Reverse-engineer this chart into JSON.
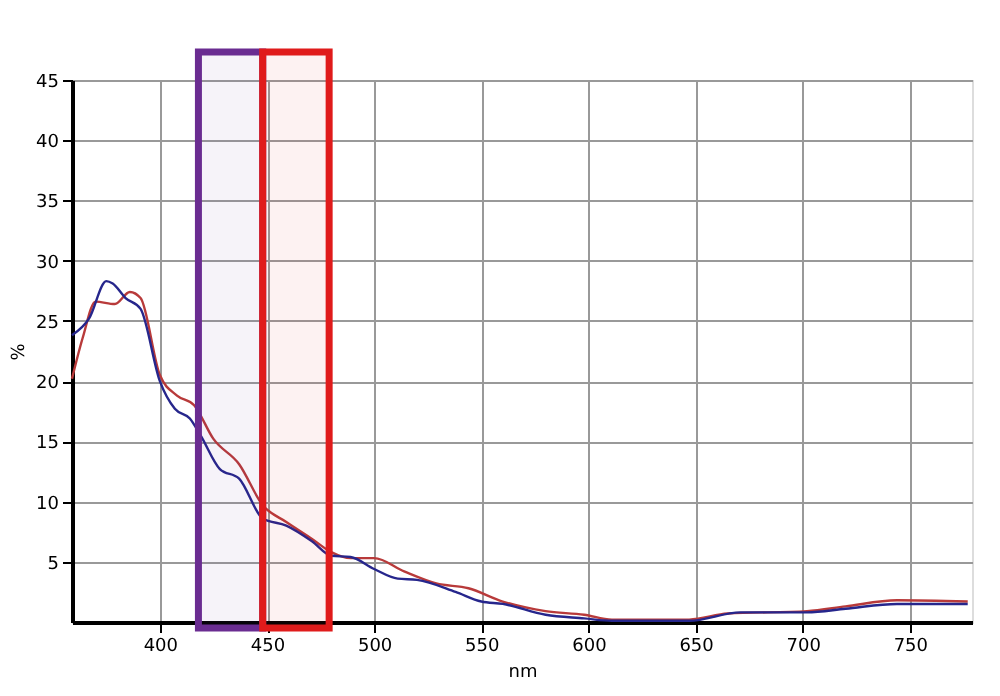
{
  "chart_data": {
    "type": "line",
    "xlabel": "nm",
    "ylabel": "%",
    "xlim": [
      359,
      779
    ],
    "ylim": [
      0,
      45
    ],
    "xticks": [
      400,
      450,
      500,
      550,
      600,
      650,
      700,
      750
    ],
    "yticks": [
      5,
      10,
      15,
      20,
      25,
      30,
      35,
      40,
      45
    ],
    "grid": true,
    "line_style": "solid",
    "series": [
      {
        "color": "#b83a3a",
        "x": [
          359,
          364,
          370,
          379,
          386,
          391,
          400,
          408,
          416,
          425,
          437,
          448,
          459,
          471,
          480,
          489,
          500,
          514,
          529,
          544,
          560,
          580,
          598,
          611,
          647,
          665,
          702,
          720,
          744,
          777
        ],
        "values": [
          20.2,
          23.6,
          26.6,
          26.4,
          27.4,
          26.9,
          20.5,
          18.8,
          18.0,
          15.2,
          13.1,
          9.7,
          8.3,
          6.9,
          5.8,
          5.3,
          5.3,
          4.2,
          3.2,
          2.8,
          1.7,
          0.9,
          0.6,
          0.2,
          0.2,
          0.7,
          0.9,
          1.3,
          1.8,
          1.7
        ]
      },
      {
        "color": "#26268c",
        "x": [
          359,
          367,
          375,
          378,
          384,
          391,
          400,
          407,
          414,
          419,
          428,
          437,
          448,
          459,
          471,
          480,
          489,
          500,
          511,
          520,
          538,
          550,
          560,
          580,
          598,
          611,
          647,
          671,
          702,
          720,
          744,
          777
        ],
        "values": [
          23.8,
          25.2,
          28.3,
          28.1,
          26.9,
          26.0,
          20.0,
          17.7,
          16.9,
          15.5,
          12.7,
          11.9,
          8.6,
          8.0,
          6.7,
          5.5,
          5.4,
          4.4,
          3.6,
          3.5,
          2.5,
          1.7,
          1.5,
          0.6,
          0.3,
          0.1,
          0.1,
          0.8,
          0.8,
          1.1,
          1.5,
          1.5
        ]
      }
    ],
    "bands": [
      {
        "axis": "x",
        "from": 418,
        "to": 448,
        "color": "#6a2c91"
      },
      {
        "axis": "x",
        "from": 448,
        "to": 479,
        "color": "#e01b1b"
      }
    ]
  }
}
